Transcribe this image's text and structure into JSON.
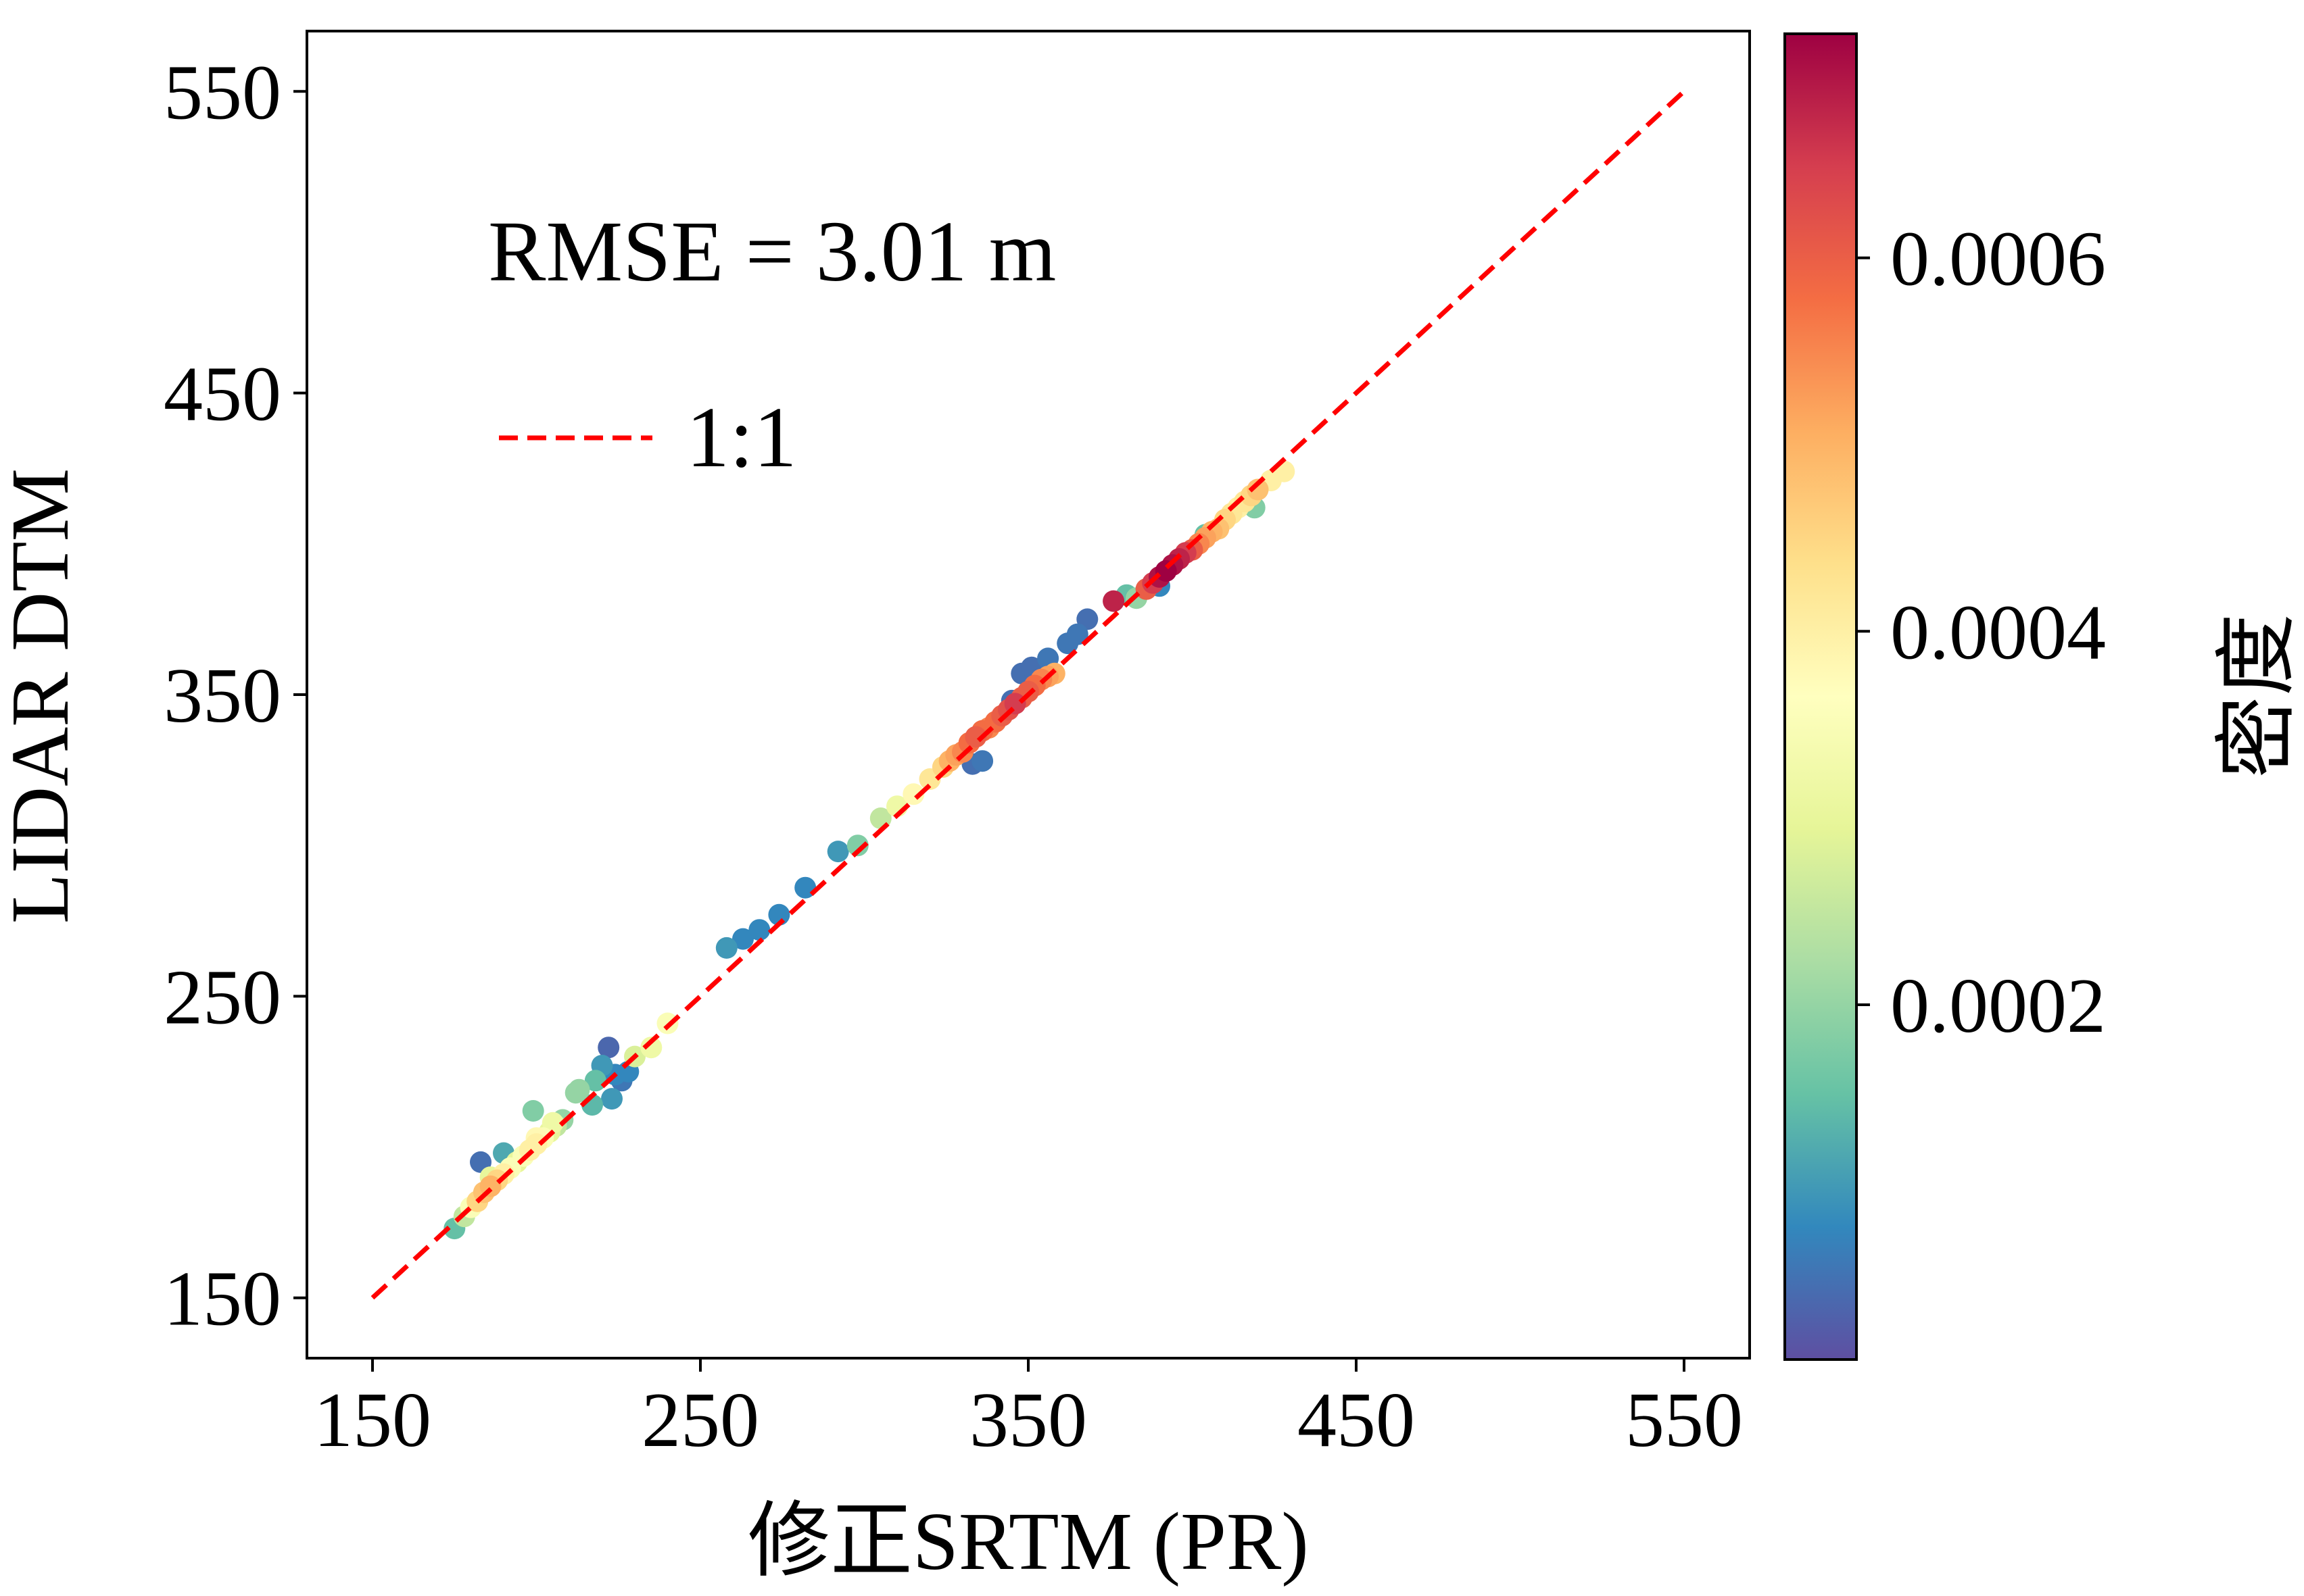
{
  "chart_data": {
    "type": "scatter",
    "title": "",
    "xlabel": "修正SRTM (PR)",
    "ylabel": "LIDAR DTM",
    "xlim": [
      130,
      570
    ],
    "ylim": [
      130,
      570
    ],
    "xticks": [
      150,
      250,
      350,
      450,
      550
    ],
    "yticks": [
      150,
      250,
      350,
      450,
      550
    ],
    "xtick_labels": [
      "150",
      "250",
      "350",
      "450",
      "550"
    ],
    "ytick_labels": [
      "150",
      "250",
      "350",
      "450",
      "550"
    ],
    "grid": false,
    "annotation": "RMSE = 3.01 m",
    "legend": {
      "placement": "upper-left",
      "entries": [
        {
          "label": "1:1",
          "style": "dashed",
          "color": "#ff0000"
        }
      ]
    },
    "reference_line": {
      "label": "1:1",
      "x": [
        150,
        550
      ],
      "y": [
        150,
        550
      ],
      "color": "#ff0000"
    },
    "colorbar": {
      "label": "密度",
      "colormap": "Spectral_r",
      "range": [
        1e-05,
        0.00072
      ],
      "ticks": [
        0.0002,
        0.0004,
        0.0006
      ],
      "tick_labels": [
        "0.0002",
        "0.0004",
        "0.0006"
      ]
    },
    "series": [
      {
        "name": "points",
        "x": [
          175,
          178,
          180,
          182,
          184,
          186,
          188,
          190,
          192,
          194,
          196,
          198,
          200,
          202,
          204,
          206,
          208,
          183,
          190,
          199,
          186,
          200,
          205,
          212,
          218,
          220,
          222,
          224,
          226,
          228,
          223,
          217,
          213,
          230,
          235,
          240,
          258,
          263,
          268,
          274,
          282,
          292,
          298,
          305,
          310,
          315,
          320,
          324,
          326,
          328,
          330,
          332,
          334,
          336,
          338,
          340,
          342,
          344,
          346,
          348,
          350,
          352,
          354,
          356,
          358,
          333,
          345,
          348,
          351,
          356,
          362,
          365,
          368,
          380,
          383,
          386,
          388,
          390,
          392,
          394,
          396,
          398,
          400,
          402,
          404,
          406,
          408,
          410,
          412,
          414,
          416,
          418,
          420,
          424,
          428,
          376,
          390,
          404,
          419,
          336
        ],
        "y": [
          173,
          177,
          180,
          182,
          185,
          187,
          189,
          191,
          193,
          195,
          197,
          199,
          201,
          203,
          205,
          207,
          209,
          195,
          198,
          212,
          190,
          203,
          208,
          218,
          222,
          227,
          233,
          224,
          222,
          225,
          216,
          214,
          219,
          230,
          233,
          241,
          266,
          269,
          272,
          277,
          286,
          298,
          300,
          309,
          313,
          317,
          322,
          326,
          328,
          330,
          331,
          334,
          336,
          338,
          339,
          341,
          343,
          345,
          347,
          349,
          351,
          353,
          355,
          356,
          357,
          327,
          348,
          357,
          359,
          362,
          367,
          370,
          375,
          383,
          382,
          385,
          387,
          389,
          391,
          393,
          395,
          397,
          398,
          400,
          402,
          404,
          405,
          408,
          410,
          412,
          414,
          416,
          418,
          421,
          424,
          381,
          386,
          403,
          412,
          328
        ],
        "density": [
          0.00015,
          0.00025,
          0.00035,
          0.00045,
          0.00048,
          0.0005,
          0.00045,
          0.0004,
          0.00035,
          0.0003,
          0.00035,
          0.0004,
          0.0004,
          0.00035,
          0.0003,
          0.00025,
          0.0002,
          5e-05,
          0.00012,
          0.00018,
          0.0003,
          0.00038,
          0.00032,
          0.0002,
          0.00015,
          0.0001,
          4e-05,
          8e-05,
          6e-05,
          8e-05,
          0.0001,
          0.00014,
          0.0002,
          0.00028,
          0.00032,
          0.00035,
          0.0001,
          8e-05,
          8e-05,
          8e-05,
          8e-05,
          0.0001,
          0.00018,
          0.00025,
          0.00032,
          0.00038,
          0.00042,
          0.00045,
          0.0005,
          0.00052,
          0.00055,
          0.00058,
          0.0006,
          0.00058,
          0.00055,
          0.00058,
          0.0006,
          0.00062,
          0.00065,
          0.0006,
          0.0006,
          0.00058,
          0.00055,
          0.00052,
          0.0005,
          5e-05,
          5e-05,
          5e-05,
          5e-05,
          6e-05,
          6e-05,
          6e-05,
          5e-05,
          0.00015,
          0.0002,
          0.0006,
          0.00065,
          0.0007,
          0.00072,
          0.0007,
          0.00068,
          0.00065,
          0.0006,
          0.00055,
          0.00052,
          0.0005,
          0.00048,
          0.00045,
          0.00042,
          0.0004,
          0.00042,
          0.00045,
          0.00048,
          0.0004,
          0.0004,
          0.00068,
          8e-05,
          0.00015,
          0.00018,
          6e-05
        ]
      }
    ]
  }
}
